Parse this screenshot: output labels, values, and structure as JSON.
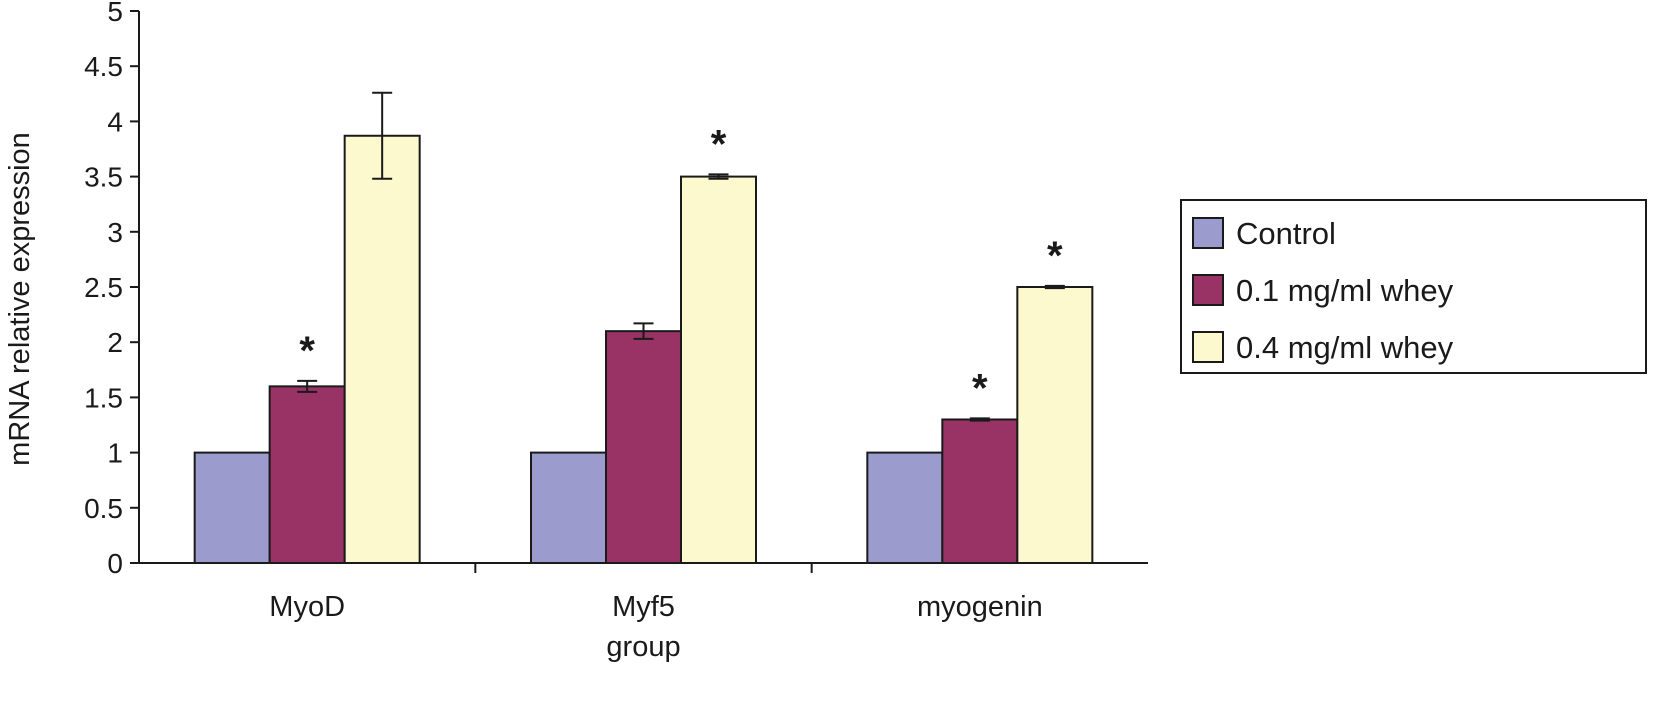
{
  "chart_data": {
    "type": "bar",
    "categories": [
      "MyoD",
      "Myf5",
      "myogenin"
    ],
    "xlabel": "group",
    "ylabel": "mRNA relative expression",
    "ylim": [
      0,
      5
    ],
    "yticks": [
      "0",
      "0.5",
      "1",
      "1.5",
      "2",
      "2.5",
      "3",
      "3.5",
      "4",
      "4.5",
      "5"
    ],
    "grid": false,
    "legend_position": "right",
    "series": [
      {
        "name": "Control",
        "color": "#9b9bcd",
        "values": [
          1.0,
          1.0,
          1.0
        ],
        "errors": [
          0,
          0,
          0
        ],
        "significant": [
          false,
          false,
          false
        ]
      },
      {
        "name": "0.1 mg/ml whey",
        "color": "#993366",
        "values": [
          1.6,
          2.1,
          1.3
        ],
        "errors": [
          0.05,
          0.07,
          0.01
        ],
        "significant": [
          true,
          false,
          true
        ]
      },
      {
        "name": "0.4 mg/ml whey",
        "color": "#fcf9cf",
        "values": [
          3.87,
          3.5,
          2.5
        ],
        "errors": [
          0.39,
          0.02,
          0.01
        ],
        "significant": [
          false,
          true,
          true
        ]
      }
    ],
    "significance_marker": "*"
  }
}
